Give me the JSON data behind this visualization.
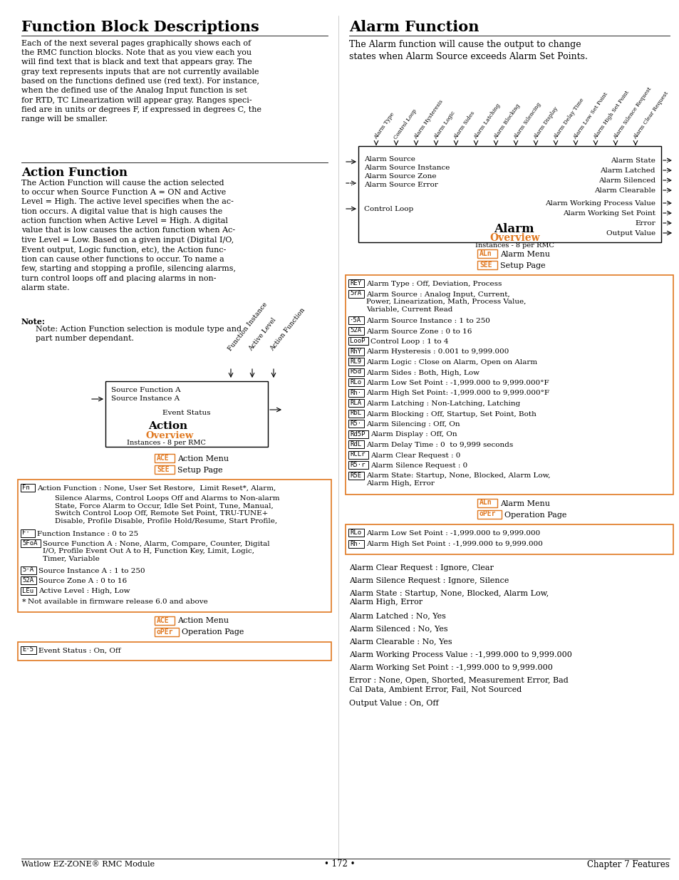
{
  "title_main": "Function Block Descriptions",
  "body_text_left_1": "Each of the next several pages graphically shows each of\nthe RMC function blocks. Note that as you view each you\nwill find text that is black and text that appears gray. The\ngray text represents inputs that are not currently available\nbased on the functions defined use (red text). For instance,\nwhen the defined use of the Analog Input function is set\nfor RTD, TC Linearization will appear gray. Ranges speci-\nfied are in units or degrees F, if expressed in degrees C, the\nrange will be smaller.",
  "section2_title": "Action Function",
  "body_text_left_2": "The Action Function will cause the action selected\nto occur when Source Function A = ON and Active\nLevel = High. The active level specifies when the ac-\ntion occurs. A digital value that is high causes the\naction function when Active Level = High. A digital\nvalue that is low causes the action function when Ac-\ntive Level = Low. Based on a given input (Digital I/O,\nEvent output, Logic function, etc), the Action func-\ntion can cause other functions to occur. To name a\nfew, starting and stopping a profile, silencing alarms,\nturn control loops off and placing alarms in non-\nalarm state.",
  "note_title": "Note:",
  "note_text": "Note: Action Function selection is module type and\npart number dependant.",
  "alarm_title": "Alarm Function",
  "alarm_intro": "The Alarm function will cause the output to change\nstates when Alarm Source exceeds Alarm Set Points.",
  "alarm_diag_inputs": [
    "Alarm Type",
    "Control Loop",
    "Alarm Hysteresis",
    "Alarm Logic",
    "Alarm Sides",
    "Alarm Latching",
    "Alarm Blocking",
    "Alarm Silencing",
    "Alarm Display",
    "Alarm Delay Time",
    "Alarm Low Set Point",
    "Alarm High Set Point",
    "Alarm Silence Request",
    "Alarm Clear Request"
  ],
  "alarm_box_left_inputs": [
    "Alarm Source",
    "Alarm Source Instance",
    "Alarm Source Zone",
    "Alarm Source Error"
  ],
  "alarm_box_control_loop": "Control Loop",
  "alarm_box_right_outputs": [
    "Alarm State",
    "Alarm Latched",
    "Alarm Silenced",
    "Alarm Clearable",
    "Alarm Working Process Value",
    "Alarm Working Set Point",
    "Error",
    "Output Value"
  ],
  "alarm_orange_box_items": [
    {
      "code": "REY",
      "text": "Alarm Type : Off, Deviation, Process"
    },
    {
      "code": "5rA",
      "text": "Alarm Source : Analog Input, Current,\nPower, Linearization, Math, Process Value,\nVariable, Current Read"
    },
    {
      "code": "·5A",
      "text": "Alarm Source Instance : 1 to 250"
    },
    {
      "code": "52A",
      "text": "Alarm Source Zone : 0 to 16"
    },
    {
      "code": "LooP",
      "text": "Control Loop : 1 to 4"
    },
    {
      "code": "RhY",
      "text": "Alarm Hysteresis : 0.001 to 9,999.000"
    },
    {
      "code": "RL9",
      "text": "Alarm Logic : Close on Alarm, Open on Alarm"
    },
    {
      "code": "R5d",
      "text": "Alarm Sides : Both, High, Low"
    },
    {
      "code": "RLo",
      "text": "Alarm Low Set Point : -1,999.000 to 9,999.000°F"
    },
    {
      "code": "Rh·",
      "text": "Alarm High Set Point: -1,999.000 to 9,999.000°F"
    },
    {
      "code": "RLA",
      "text": "Alarm Latching : Non-Latching, Latching"
    },
    {
      "code": "RbL",
      "text": "Alarm Blocking : Off, Startup, Set Point, Both"
    },
    {
      "code": "R5·",
      "text": "Alarm Silencing : Off, On"
    },
    {
      "code": "Rd5P",
      "text": "Alarm Display : Off, On"
    },
    {
      "code": "RdL",
      "text": "Alarm Delay Time : 0  to 9,999 seconds"
    },
    {
      "code": "RCLr",
      "text": "Alarm Clear Request : 0"
    },
    {
      "code": "R5·r",
      "text": "Alarm Silence Request : 0"
    },
    {
      "code": "R5E",
      "text": "Alarm State: Startup, None, Blocked, Alarm Low,\nAlarm High, Error"
    }
  ],
  "alarm_op_box_items": [
    {
      "code": "RLo",
      "text": "Alarm Low Set Point : -1,999.000 to 9,999.000"
    },
    {
      "code": "Rh·",
      "text": "Alarm High Set Point : -1,999.000 to 9,999.000"
    }
  ],
  "alarm_operation_text": [
    "Alarm Clear Request : Ignore, Clear",
    "Alarm Silence Request : Ignore, Silence",
    "Alarm State : Startup, None, Blocked, Alarm Low,\nAlarm High, Error",
    "Alarm Latched : No, Yes",
    "Alarm Silenced : No, Yes",
    "Alarm Clearable : No, Yes",
    "Alarm Working Process Value : -1,999.000 to 9,999.000",
    "Alarm Working Set Point : -1,999.000 to 9,999.000",
    "Error : None, Open, Shorted, Measurement Error, Bad\nCal Data, Ambient Error, Fail, Not Sourced",
    "Output Value : On, Off"
  ],
  "action_diag_inputs": [
    "Function Instance",
    "Active Level",
    "Action Function"
  ],
  "action_orange_box_items": [
    {
      "code": "Fn",
      "text": "Action Function : None, User Set Restore,  Limit Reset*, Alarm,"
    },
    {
      "code": "",
      "text": "Silence Alarms, Control Loops Off and Alarms to Non-alarm\nState, Force Alarm to Occur, Idle Set Point, Tune, Manual,\nSwitch Control Loop Off, Remote Set Point, TRU-TUNE+\nDisable, Profile Disable, Profile Hold/Resume, Start Profile,"
    },
    {
      "code": "F·",
      "text": "Function Instance : 0 to 25"
    },
    {
      "code": "5FoA",
      "text": "Source Function A : None, Alarm, Compare, Counter, Digital\nI/O, Profile Event Out A to H, Function Key, Limit, Logic,\nTimer, Variable"
    },
    {
      "code": "5·A",
      "text": "Source Instance A : 1 to 250"
    },
    {
      "code": "52A",
      "text": "Source Zone A : 0 to 16"
    },
    {
      "code": "LEu",
      "text": "Active Level : High, Low"
    },
    {
      "code": "*",
      "text": "Not available in firmware release 6.0 and above"
    }
  ],
  "action_op_box_items": [
    {
      "code": "E·5",
      "text": "Event Status : On, Off"
    }
  ],
  "footer_left": "Watlow EZ-ZONE® RMC Module",
  "footer_center": "• 172 •",
  "footer_right": "Chapter 7 Features",
  "orange": "#E07820",
  "red": "#CC2200",
  "black": "#000000"
}
